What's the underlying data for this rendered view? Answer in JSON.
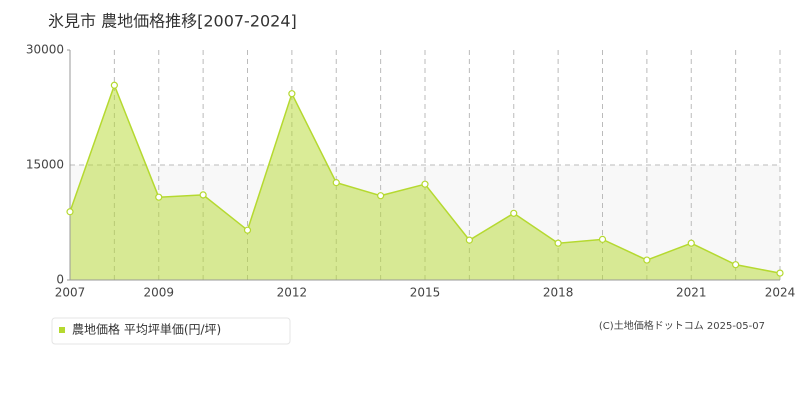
{
  "chart_data": {
    "type": "area",
    "title": "氷見市 農地価格推移[2007-2024]",
    "categories": [
      "2007",
      null,
      "2009",
      null,
      null,
      "2012",
      null,
      null,
      "2015",
      null,
      null,
      "2018",
      null,
      null,
      "2021",
      null,
      "2024"
    ],
    "series": [
      {
        "name": "農地価格 平均坪単価(円/坪)",
        "color": "#b5d930",
        "values": [
          8900,
          25400,
          10800,
          11100,
          6500,
          24300,
          12700,
          11000,
          12500,
          5200,
          8700,
          4800,
          5300,
          2600,
          4800,
          2000,
          900
        ]
      }
    ],
    "ylim": [
      0,
      30000
    ],
    "yticks": [
      0,
      15000,
      30000
    ],
    "grid": true,
    "source": "(C)土地価格ドットコム 2025-05-07"
  }
}
